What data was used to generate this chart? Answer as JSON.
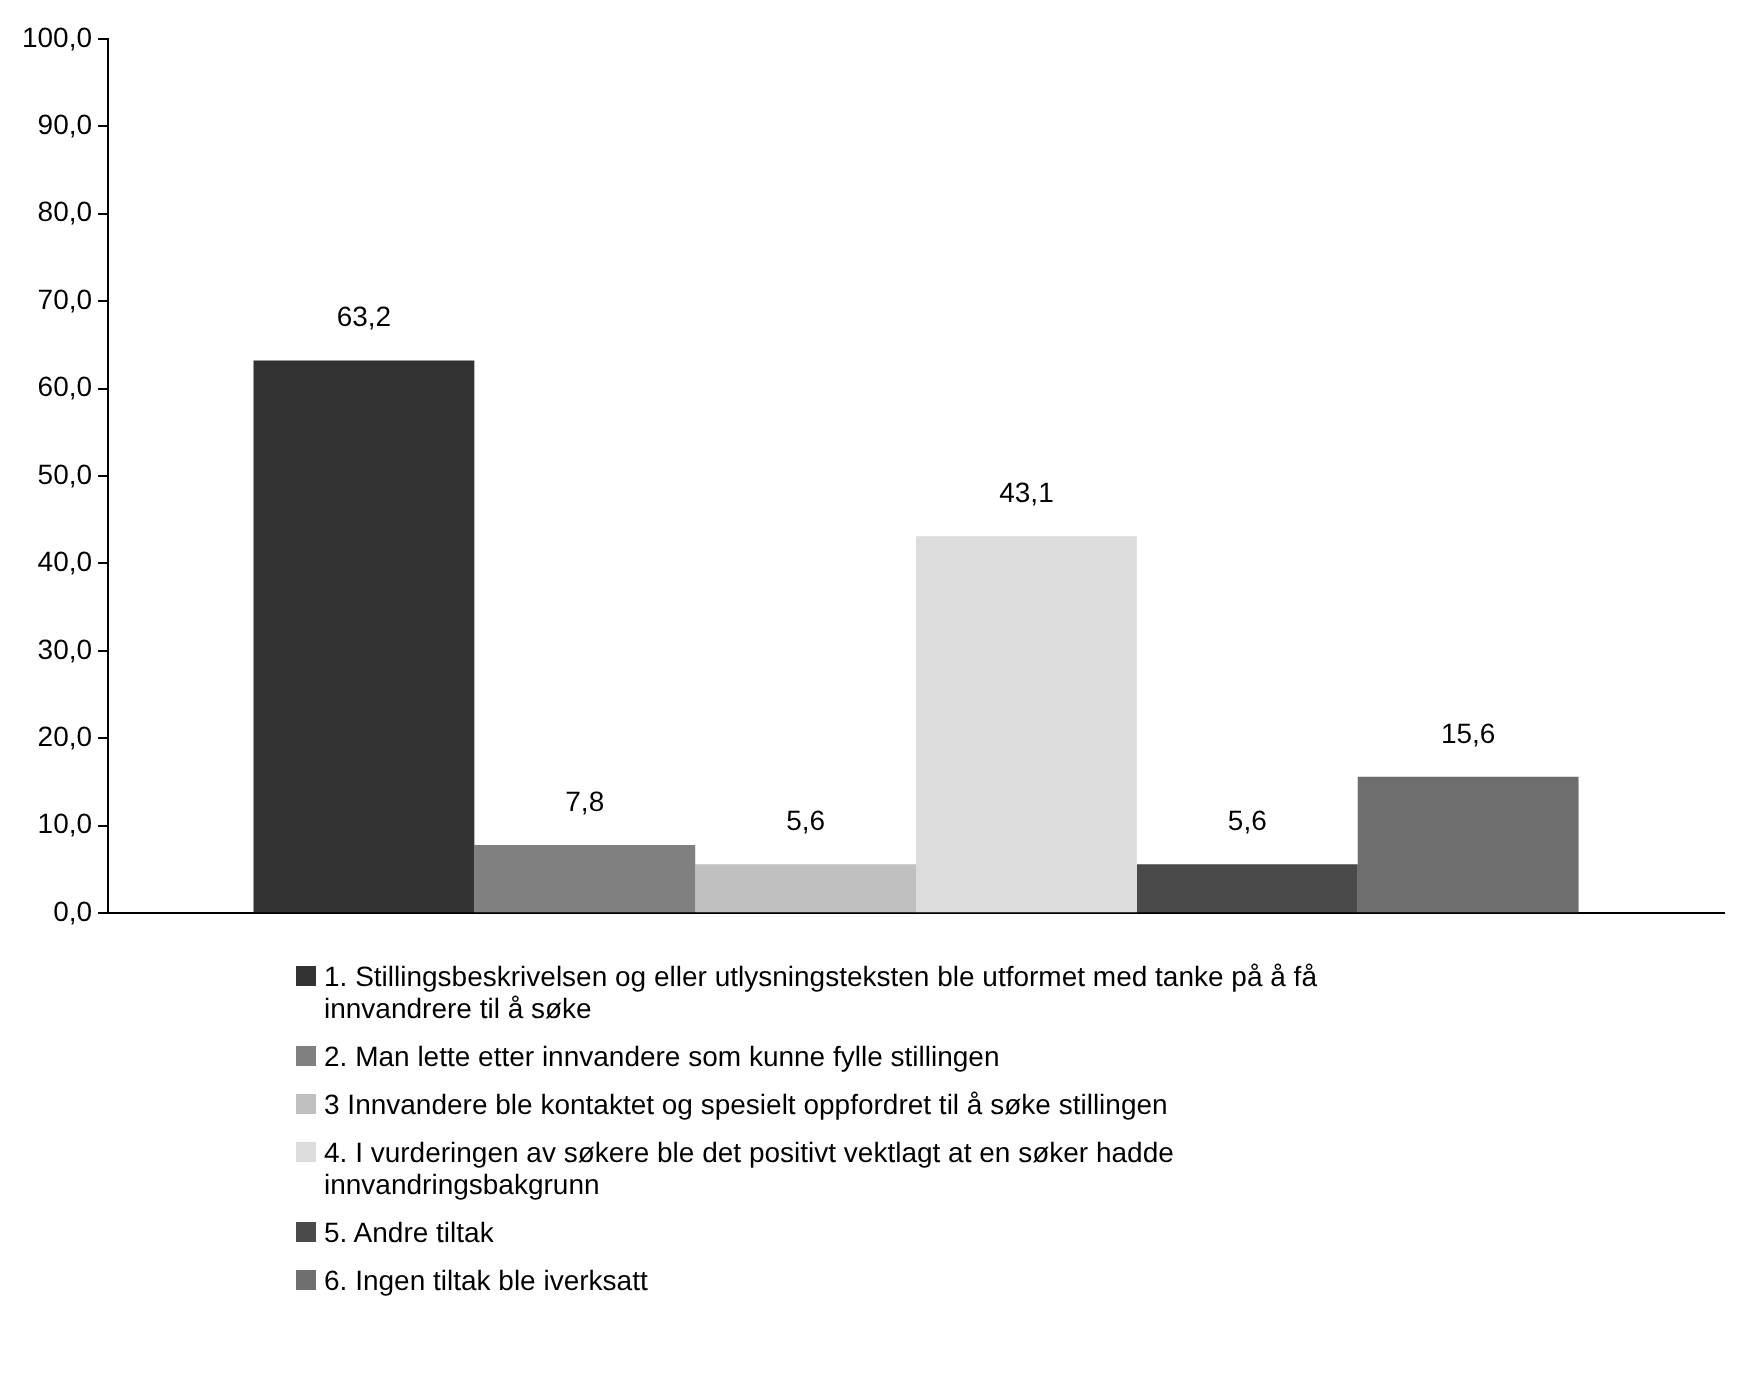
{
  "chart_data": {
    "type": "bar",
    "categories": [
      null
    ],
    "series": [
      {
        "name": "1. Stillingsbeskrivelsen og eller utlysningsteksten ble utformet med tanke på å få innvandrere  til å søke",
        "color": "#333333",
        "values": [
          63.2
        ]
      },
      {
        "name": "2. Man lette etter innvandere som kunne fylle stillingen",
        "color": "#808080",
        "values": [
          7.8
        ]
      },
      {
        "name": "3 Innvandere ble kontaktet og spesielt oppfordret til å søke stillingen",
        "color": "#c0c0c0",
        "values": [
          5.6
        ]
      },
      {
        "name": "4. I vurderingen av søkere ble det positivt vektlagt at en søker hadde innvandringsbakgrunn",
        "color": "#dcdcdc",
        "values": [
          43.1
        ]
      },
      {
        "name": "5. Andre tiltak",
        "color": "#4a4a4a",
        "values": [
          5.6
        ]
      },
      {
        "name": "6. Ingen tiltak ble iverksatt",
        "color": "#6e6e6e",
        "values": [
          15.6
        ]
      }
    ],
    "ylim": [
      0,
      100
    ],
    "yticks": [
      {
        "value": 0,
        "label": "0,0"
      },
      {
        "value": 10,
        "label": "10,0"
      },
      {
        "value": 20,
        "label": "20,0"
      },
      {
        "value": 30,
        "label": "30,0"
      },
      {
        "value": 40,
        "label": "40,0"
      },
      {
        "value": 50,
        "label": "50,0"
      },
      {
        "value": 60,
        "label": "60,0"
      },
      {
        "value": 70,
        "label": "70,0"
      },
      {
        "value": 80,
        "label": "80,0"
      },
      {
        "value": 90,
        "label": "90,0"
      },
      {
        "value": 100,
        "label": "100,0"
      }
    ],
    "value_labels": [
      "63,2",
      "7,8",
      "5,6",
      "43,1",
      "5,6",
      "15,6"
    ],
    "legend": "bottom"
  }
}
